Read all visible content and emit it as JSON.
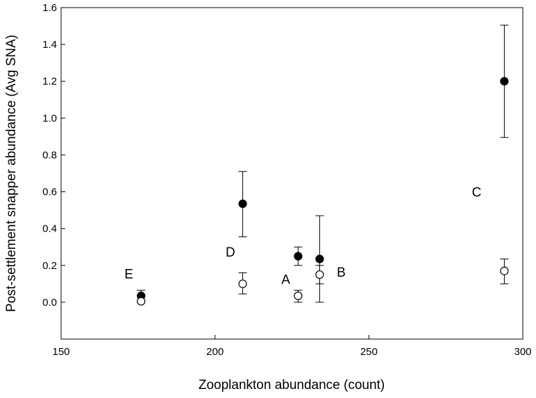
{
  "chart_data": {
    "type": "scatter",
    "title": "",
    "xlabel": "Zooplankton abundance (count)",
    "ylabel": "Post-settlement snapper abundance (Avg SNA)",
    "xlim": [
      150,
      300
    ],
    "ylim": [
      -0.2,
      1.6
    ],
    "xticks": [
      "150",
      "200",
      "250",
      "300"
    ],
    "yticks": [
      "0.0",
      "0.2",
      "0.4",
      "0.6",
      "0.8",
      "1.0",
      "1.2",
      "1.4",
      "1.6"
    ],
    "grid": false,
    "legend": "none",
    "series": [
      {
        "marker": "filled-circle",
        "color": "#000000",
        "points": [
          {
            "x": 176,
            "y": 0.035,
            "err_low": 0.035,
            "err_high": 0.065
          },
          {
            "x": 209,
            "y": 0.535,
            "err_low": 0.355,
            "err_high": 0.71
          },
          {
            "x": 227,
            "y": 0.25,
            "err_low": 0.2,
            "err_high": 0.3
          },
          {
            "x": 234,
            "y": 0.235,
            "err_low": 0.0,
            "err_high": 0.47
          },
          {
            "x": 294,
            "y": 1.2,
            "err_low": 0.895,
            "err_high": 1.505
          }
        ]
      },
      {
        "marker": "open-circle",
        "color": "#000000",
        "points": [
          {
            "x": 176,
            "y": 0.005,
            "err_low": 0.005,
            "err_high": 0.005
          },
          {
            "x": 209,
            "y": 0.1,
            "err_low": 0.045,
            "err_high": 0.16
          },
          {
            "x": 227,
            "y": 0.035,
            "err_low": 0.0,
            "err_high": 0.065
          },
          {
            "x": 234,
            "y": 0.15,
            "err_low": 0.1,
            "err_high": 0.2
          },
          {
            "x": 294,
            "y": 0.17,
            "err_low": 0.1,
            "err_high": 0.235
          }
        ]
      }
    ],
    "annotations": [
      {
        "text": "E",
        "x": 172,
        "y": 0.155
      },
      {
        "text": "D",
        "x": 205,
        "y": 0.275
      },
      {
        "text": "A",
        "x": 223,
        "y": 0.125
      },
      {
        "text": "B",
        "x": 241,
        "y": 0.165
      },
      {
        "text": "C",
        "x": 285,
        "y": 0.6
      }
    ]
  }
}
